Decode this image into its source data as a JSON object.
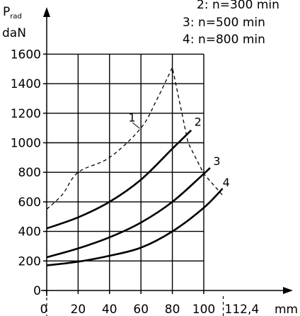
{
  "chart_data": {
    "type": "line",
    "ylabel_main": "P",
    "ylabel_sub": "rad",
    "yunit": "daN",
    "xunit": "mm",
    "xlim": [
      0,
      120
    ],
    "ylim": [
      0,
      1600
    ],
    "grid_xlim": [
      0,
      100
    ],
    "grid_ylim": [
      0,
      1600
    ],
    "x_ticks": [
      0,
      20,
      40,
      60,
      80,
      100
    ],
    "x_tick_labels": [
      "0",
      "20",
      "40",
      "60",
      "80",
      "100"
    ],
    "x_extra_mark": {
      "value": 112.4,
      "label": "112,4"
    },
    "y_ticks": [
      0,
      200,
      400,
      600,
      800,
      1000,
      1200,
      1400,
      1600
    ],
    "y_tick_labels": [
      "0",
      "200",
      "400",
      "600",
      "800",
      "1000",
      "1200",
      "1400",
      "1600"
    ],
    "grid": true,
    "legend_lines": [
      "2: n=300 min",
      "3: n=500 min",
      "4: n=800 min"
    ],
    "series": [
      {
        "name": "1",
        "style": "dashed",
        "points": [
          [
            0,
            550
          ],
          [
            10,
            650
          ],
          [
            20,
            800
          ],
          [
            40,
            900
          ],
          [
            60,
            1100
          ],
          [
            70,
            1290
          ],
          [
            80,
            1510
          ],
          [
            90,
            1000
          ],
          [
            100,
            790
          ],
          [
            112.4,
            640
          ]
        ],
        "label_at": [
          52,
          1145
        ]
      },
      {
        "name": "2",
        "style": "solid",
        "points": [
          [
            0,
            420
          ],
          [
            20,
            495
          ],
          [
            40,
            600
          ],
          [
            60,
            750
          ],
          [
            80,
            960
          ],
          [
            92,
            1085
          ]
        ],
        "label_at": [
          94,
          1115
        ]
      },
      {
        "name": "3",
        "style": "solid",
        "points": [
          [
            0,
            225
          ],
          [
            20,
            285
          ],
          [
            40,
            360
          ],
          [
            60,
            460
          ],
          [
            80,
            600
          ],
          [
            100,
            790
          ],
          [
            104,
            830
          ]
        ],
        "label_at": [
          106,
          850
        ]
      },
      {
        "name": "4",
        "style": "solid",
        "points": [
          [
            0,
            170
          ],
          [
            20,
            195
          ],
          [
            40,
            235
          ],
          [
            60,
            290
          ],
          [
            80,
            400
          ],
          [
            100,
            560
          ],
          [
            112,
            690
          ]
        ],
        "label_at": [
          112,
          705
        ]
      }
    ]
  }
}
